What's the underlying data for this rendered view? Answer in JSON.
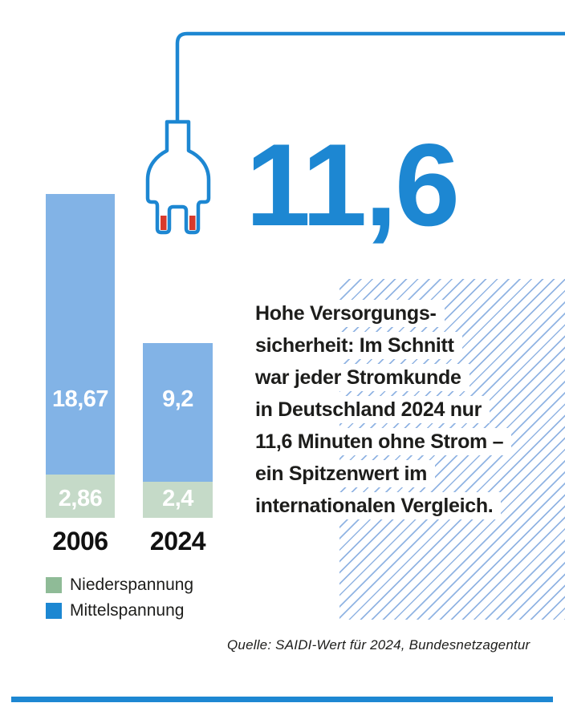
{
  "headline_value": "11,6",
  "infographic_text": {
    "lines": [
      "Hohe Versorgungs-",
      "sicherheit: Im Schnitt",
      "war jeder Stromkunde",
      "in Deutschland 2024 nur",
      "11,6 Minuten ohne Strom –",
      "ein Spitzenwert im",
      "internationalen Vergleich."
    ]
  },
  "chart_data": {
    "type": "bar",
    "stacked": true,
    "categories": [
      "2006",
      "2024"
    ],
    "series": [
      {
        "name": "Mittelspannung",
        "values": [
          18.67,
          9.2
        ],
        "labels": [
          "18,67",
          "9,2"
        ],
        "color": "#82b3e6"
      },
      {
        "name": "Niederspannung",
        "values": [
          2.86,
          2.4
        ],
        "labels": [
          "2,86",
          "2,4"
        ],
        "color": "#c5dac8"
      }
    ],
    "title": "11,6",
    "xlabel": "",
    "ylabel": "",
    "ylim": [
      0,
      21.53
    ],
    "grid": false,
    "legend_position": "bottom-left"
  },
  "legend": {
    "items": [
      {
        "label": "Niederspannung",
        "color": "#8fbb97"
      },
      {
        "label": "Mittelspannung",
        "color": "#1c87d2"
      }
    ]
  },
  "source_note": "Quelle: SAIDI-Wert für 2024, Bundesnetzagentur",
  "icons": {
    "plug": "power-plug-icon"
  },
  "colors": {
    "brand_blue": "#1d87d2",
    "bar_blue": "#82b3e6",
    "bar_green": "#c5dac8",
    "legend_green": "#8fbb97",
    "legend_blue": "#1c87d2",
    "plug_red": "#d93a2b",
    "text_dark": "#1d1d1b",
    "hatch_blue": "#91b4e3"
  }
}
